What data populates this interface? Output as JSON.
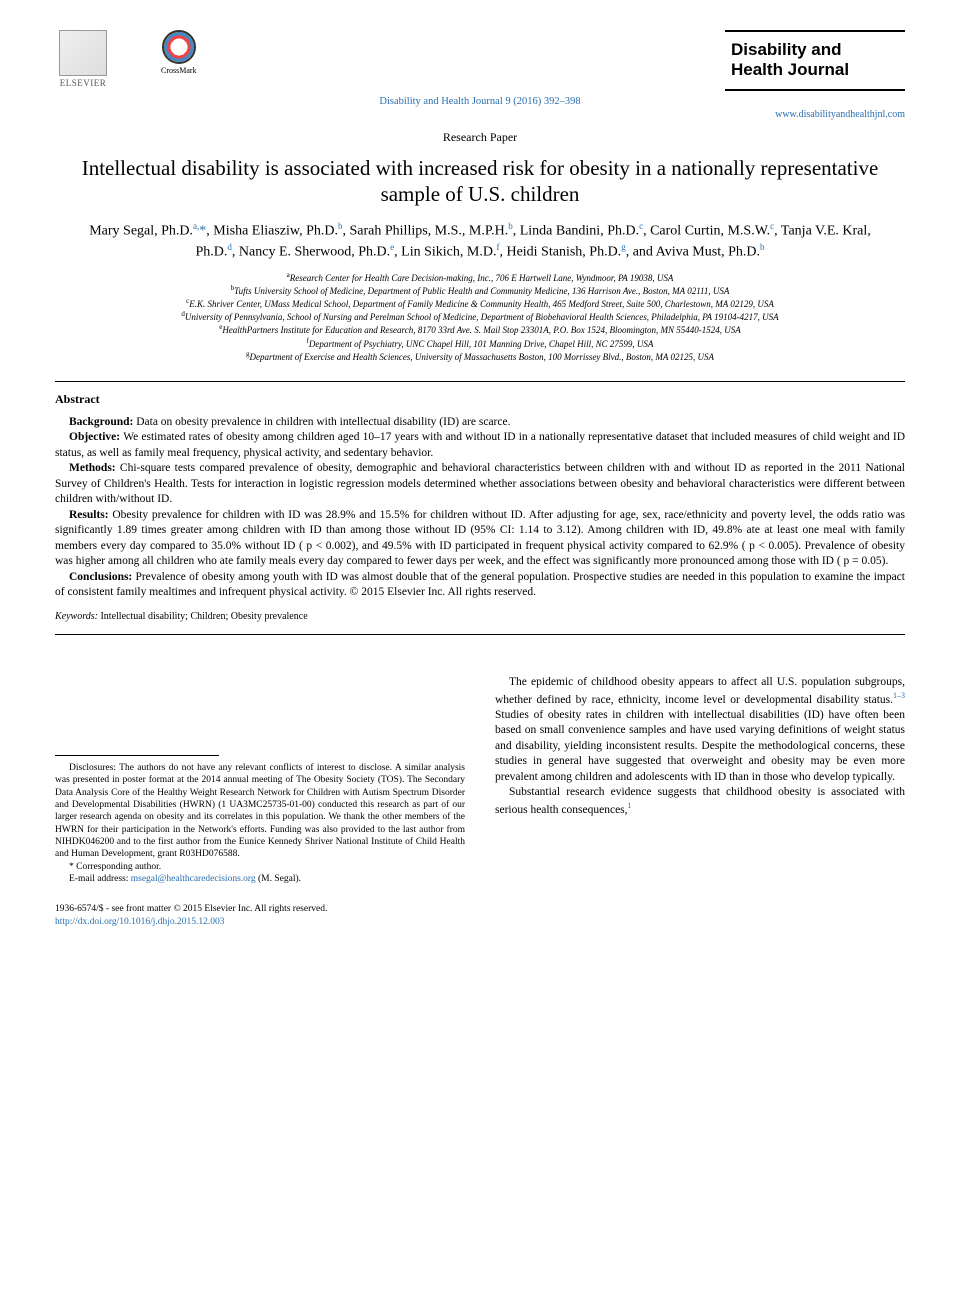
{
  "header": {
    "publisher": "ELSEVIER",
    "crossmark": "CrossMark",
    "citation_line": "Disability and Health Journal 9 (2016) 392–398",
    "journal_name_line1": "Disability and",
    "journal_name_line2": "Health Journal",
    "journal_url": "www.disabilityandhealthjnl.com",
    "paper_type": "Research Paper"
  },
  "title": "Intellectual disability is associated with increased risk for obesity in a nationally representative sample of U.S. children",
  "authors_html": "Mary Segal, Ph.D.<sup>a,</sup><span class='ast'>*</span>, Misha Eliasziw, Ph.D.<sup>b</sup>, Sarah Phillips, M.S., M.P.H.<sup>b</sup>, Linda Bandini, Ph.D.<sup>c</sup>, Carol Curtin, M.S.W.<sup>c</sup>, Tanja V.E. Kral, Ph.D.<sup>d</sup>, Nancy E. Sherwood, Ph.D.<sup>e</sup>, Lin Sikich, M.D.<sup>f</sup>, Heidi Stanish, Ph.D.<sup>g</sup>, and Aviva Must, Ph.D.<sup>b</sup>",
  "affiliations": [
    {
      "sup": "a",
      "text": "Research Center for Health Care Decision-making, Inc., 706 E Hartwell Lane, Wyndmoor, PA 19038, USA"
    },
    {
      "sup": "b",
      "text": "Tufts University School of Medicine, Department of Public Health and Community Medicine, 136 Harrison Ave., Boston, MA 02111, USA"
    },
    {
      "sup": "c",
      "text": "E.K. Shriver Center, UMass Medical School, Department of Family Medicine & Community Health, 465 Medford Street, Suite 500, Charlestown, MA 02129, USA"
    },
    {
      "sup": "d",
      "text": "University of Pennsylvania, School of Nursing and Perelman School of Medicine, Department of Biobehavioral Health Sciences, Philadelphia, PA 19104-4217, USA"
    },
    {
      "sup": "e",
      "text": "HealthPartners Institute for Education and Research, 8170 33rd Ave. S. Mail Stop 23301A, P.O. Box 1524, Bloomington, MN 55440-1524, USA"
    },
    {
      "sup": "f",
      "text": "Department of Psychiatry, UNC Chapel Hill, 101 Manning Drive, Chapel Hill, NC 27599, USA"
    },
    {
      "sup": "g",
      "text": "Department of Exercise and Health Sciences, University of Massachusetts Boston, 100 Morrissey Blvd., Boston, MA 02125, USA"
    }
  ],
  "abstract": {
    "heading": "Abstract",
    "sections": [
      {
        "label": "Background:",
        "text": "Data on obesity prevalence in children with intellectual disability (ID) are scarce."
      },
      {
        "label": "Objective:",
        "text": "We estimated rates of obesity among children aged 10–17 years with and without ID in a nationally representative dataset that included measures of child weight and ID status, as well as family meal frequency, physical activity, and sedentary behavior."
      },
      {
        "label": "Methods:",
        "text": "Chi-square tests compared prevalence of obesity, demographic and behavioral characteristics between children with and without ID as reported in the 2011 National Survey of Children's Health. Tests for interaction in logistic regression models determined whether associations between obesity and behavioral characteristics were different between children with/without ID."
      },
      {
        "label": "Results:",
        "text": "Obesity prevalence for children with ID was 28.9% and 15.5% for children without ID. After adjusting for age, sex, race/ethnicity and poverty level, the odds ratio was significantly 1.89 times greater among children with ID than among those without ID (95% CI: 1.14 to 3.12). Among children with ID, 49.8% ate at least one meal with family members every day compared to 35.0% without ID ( p < 0.002), and 49.5% with ID participated in frequent physical activity compared to 62.9% ( p < 0.005). Prevalence of obesity was higher among all children who ate family meals every day compared to fewer days per week, and the effect was significantly more pronounced among those with ID ( p = 0.05)."
      },
      {
        "label": "Conclusions:",
        "text": "Prevalence of obesity among youth with ID was almost double that of the general population. Prospective studies are needed in this population to examine the impact of consistent family mealtimes and infrequent physical activity.  © 2015 Elsevier Inc. All rights reserved."
      }
    ],
    "keywords_label": "Keywords:",
    "keywords": "Intellectual disability; Children; Obesity prevalence"
  },
  "footnotes": {
    "disclosures": "Disclosures: The authors do not have any relevant conflicts of interest to disclose. A similar analysis was presented in poster format at the 2014 annual meeting of The Obesity Society (TOS). The Secondary Data Analysis Core of the Healthy Weight Research Network for Children with Autism Spectrum Disorder and Developmental Disabilities (HWRN) (1 UA3MC25735-01-00) conducted this research as part of our larger research agenda on obesity and its correlates in this population. We thank the other members of the HWRN for their participation in the Network's efforts. Funding was also provided to the last author from NIHDK046200 and to the first author from the Eunice Kennedy Shriver National Institute of Child Health and Human Development, grant R03HD076588.",
    "corresponding": "* Corresponding author.",
    "email_label": "E-mail address:",
    "email": "msegal@healthcaredecisions.org",
    "email_who": "(M. Segal)."
  },
  "footer": {
    "issn_line": "1936-6574/$ - see front matter © 2015 Elsevier Inc. All rights reserved.",
    "doi": "http://dx.doi.org/10.1016/j.dhjo.2015.12.003"
  },
  "body": {
    "para1": "The epidemic of childhood obesity appears to affect all U.S. population subgroups, whether defined by race, ethnicity, income level or developmental disability status.",
    "para1_cite": "1–3",
    "para1_cont": " Studies of obesity rates in children with intellectual disabilities (ID) have often been based on small convenience samples and have used varying definitions of weight status and disability, yielding inconsistent results. Despite the methodological concerns, these studies in general have suggested that overweight and obesity may be even more prevalent among children and adolescents with ID than in those who develop typically.",
    "para2": "Substantial research evidence suggests that childhood obesity is associated with serious health consequences,",
    "para2_cite": "1"
  }
}
